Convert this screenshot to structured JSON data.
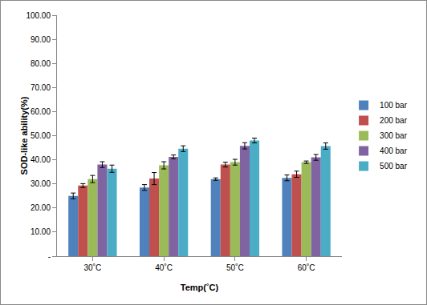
{
  "chart_data": {
    "type": "bar",
    "x_label": "Temp(˚C)",
    "y_label": "SOD-like ability(%)",
    "categories": [
      "30˚C",
      "40˚C",
      "50˚C",
      "60˚C"
    ],
    "series": [
      {
        "name": "100 bar",
        "color": "#4f81bd",
        "values": [
          25.0,
          28.5,
          32.0,
          32.5
        ],
        "errors": [
          1.2,
          1.2,
          0.5,
          1.2
        ]
      },
      {
        "name": "200 bar",
        "color": "#c0504d",
        "values": [
          29.3,
          32.2,
          38.0,
          34.0
        ],
        "errors": [
          0.8,
          2.5,
          1.0,
          1.3
        ]
      },
      {
        "name": "300 bar",
        "color": "#9bbb59",
        "values": [
          32.0,
          37.7,
          39.0,
          39.0
        ],
        "errors": [
          1.5,
          1.5,
          1.2,
          0.5
        ]
      },
      {
        "name": "400 bar",
        "color": "#8064a2",
        "values": [
          38.0,
          41.2,
          45.8,
          41.0
        ],
        "errors": [
          1.2,
          0.8,
          1.3,
          1.2
        ]
      },
      {
        "name": "500 bar",
        "color": "#4bacc6",
        "values": [
          36.3,
          44.6,
          48.0,
          45.7
        ],
        "errors": [
          1.5,
          1.2,
          1.0,
          1.3
        ]
      }
    ],
    "ylim": [
      0,
      100
    ],
    "yticks": [
      {
        "value": 0,
        "label": "-"
      },
      {
        "value": 10,
        "label": "10.00"
      },
      {
        "value": 20,
        "label": "20.00"
      },
      {
        "value": 30,
        "label": "30.00"
      },
      {
        "value": 40,
        "label": "40.00"
      },
      {
        "value": 50,
        "label": "50.00"
      },
      {
        "value": 60,
        "label": "60.00"
      },
      {
        "value": 70,
        "label": "70.00"
      },
      {
        "value": 80,
        "label": "80.00"
      },
      {
        "value": 90,
        "label": "90.00"
      },
      {
        "value": 100,
        "label": "100.00"
      }
    ],
    "grid": false,
    "legend": "right"
  }
}
